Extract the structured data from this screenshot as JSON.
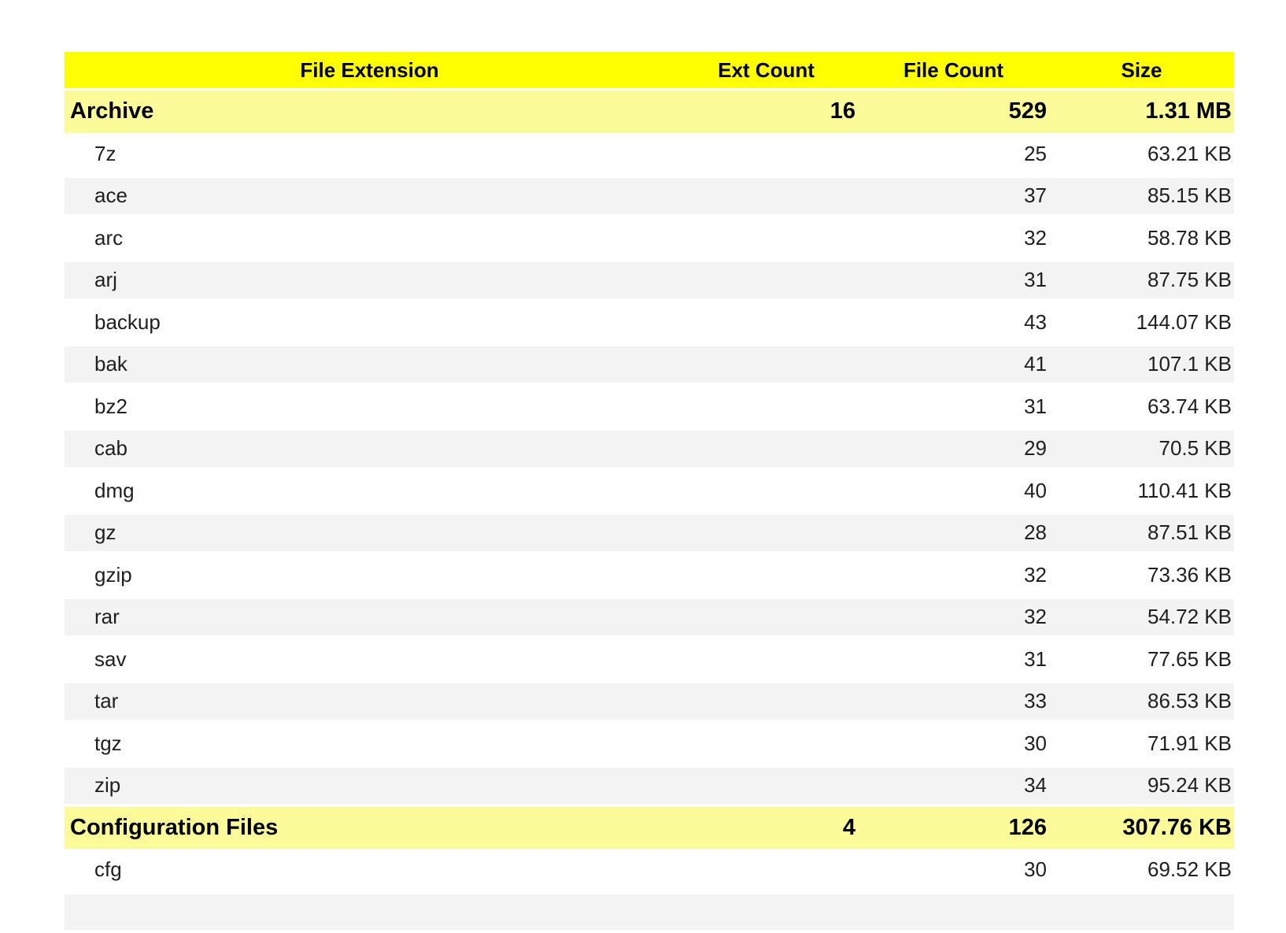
{
  "colors": {
    "header_bg": "#FFFF00",
    "group_row_bg": "#FBFB9A",
    "stripe_row_bg": "#F3F3F3",
    "text": "#000000"
  },
  "chart_data": {
    "type": "table",
    "columns": [
      "File Extension",
      "Ext Count",
      "File Count",
      "Size"
    ],
    "groups": [
      {
        "name": "Archive",
        "ext_count": 16,
        "file_count": 529,
        "size": "1.31 MB",
        "rows": [
          {
            "ext": "7z",
            "file_count": 25,
            "size": "63.21 KB"
          },
          {
            "ext": "ace",
            "file_count": 37,
            "size": "85.15 KB"
          },
          {
            "ext": "arc",
            "file_count": 32,
            "size": "58.78 KB"
          },
          {
            "ext": "arj",
            "file_count": 31,
            "size": "87.75 KB"
          },
          {
            "ext": "backup",
            "file_count": 43,
            "size": "144.07 KB"
          },
          {
            "ext": "bak",
            "file_count": 41,
            "size": "107.1 KB"
          },
          {
            "ext": "bz2",
            "file_count": 31,
            "size": "63.74 KB"
          },
          {
            "ext": "cab",
            "file_count": 29,
            "size": "70.5 KB"
          },
          {
            "ext": "dmg",
            "file_count": 40,
            "size": "110.41 KB"
          },
          {
            "ext": "gz",
            "file_count": 28,
            "size": "87.51 KB"
          },
          {
            "ext": "gzip",
            "file_count": 32,
            "size": "73.36 KB"
          },
          {
            "ext": "rar",
            "file_count": 32,
            "size": "54.72 KB"
          },
          {
            "ext": "sav",
            "file_count": 31,
            "size": "77.65 KB"
          },
          {
            "ext": "tar",
            "file_count": 33,
            "size": "86.53 KB"
          },
          {
            "ext": "tgz",
            "file_count": 30,
            "size": "71.91 KB"
          },
          {
            "ext": "zip",
            "file_count": 34,
            "size": "95.24 KB"
          }
        ]
      },
      {
        "name": "Configuration Files",
        "ext_count": 4,
        "file_count": 126,
        "size": "307.76 KB",
        "rows": [
          {
            "ext": "cfg",
            "file_count": 30,
            "size": "69.52 KB"
          }
        ]
      }
    ],
    "partial_next_row_visible": true,
    "layout": {
      "grid": "off",
      "detail_rows_striped": true,
      "numeric_alignment": "right"
    }
  }
}
